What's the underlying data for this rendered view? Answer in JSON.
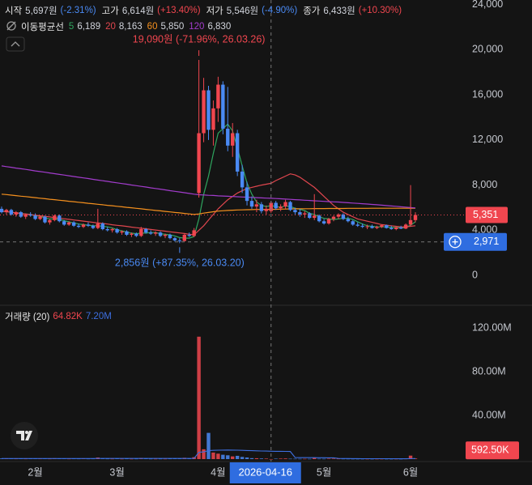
{
  "chart_data": [
    {
      "type": "candlestick",
      "x": [
        "2026-01-22",
        "2026-01-23",
        "2026-01-26",
        "2026-01-27",
        "2026-01-28",
        "2026-01-29",
        "2026-01-30",
        "2026-02-02",
        "2026-02-03",
        "2026-02-04",
        "2026-02-05",
        "2026-02-06",
        "2026-02-09",
        "2026-02-10",
        "2026-02-11",
        "2026-02-12",
        "2026-02-13",
        "2026-02-19",
        "2026-02-20",
        "2026-02-23",
        "2026-02-24",
        "2026-02-25",
        "2026-02-26",
        "2026-02-27",
        "2026-03-03",
        "2026-03-04",
        "2026-03-05",
        "2026-03-06",
        "2026-03-09",
        "2026-03-10",
        "2026-03-11",
        "2026-03-12",
        "2026-03-13",
        "2026-03-16",
        "2026-03-17",
        "2026-03-18",
        "2026-03-19",
        "2026-03-20",
        "2026-03-23",
        "2026-03-24",
        "2026-03-25",
        "2026-03-26",
        "2026-03-27",
        "2026-03-30",
        "2026-03-31",
        "2026-04-01",
        "2026-04-02",
        "2026-04-03",
        "2026-04-06",
        "2026-04-07",
        "2026-04-08",
        "2026-04-09",
        "2026-04-10",
        "2026-04-13",
        "2026-04-14",
        "2026-04-15",
        "2026-04-16",
        "2026-04-17",
        "2026-04-20",
        "2026-04-21",
        "2026-04-22",
        "2026-04-23",
        "2026-04-24",
        "2026-04-27",
        "2026-04-28",
        "2026-04-29",
        "2026-04-30",
        "2026-05-04",
        "2026-05-06",
        "2026-05-07",
        "2026-05-08",
        "2026-05-11",
        "2026-05-12",
        "2026-05-13",
        "2026-05-14",
        "2026-05-15",
        "2026-05-18",
        "2026-05-19",
        "2026-05-20",
        "2026-05-21",
        "2026-05-22",
        "2026-05-26",
        "2026-05-27",
        "2026-05-28",
        "2026-05-29",
        "2026-06-01",
        "2026-06-02"
      ],
      "open": [
        5900,
        5600,
        5800,
        5400,
        5600,
        5200,
        5400,
        5300,
        5000,
        5200,
        4700,
        4900,
        5300,
        4800,
        4500,
        4700,
        4400,
        4300,
        4500,
        4400,
        4200,
        4600,
        4100,
        4000,
        4100,
        3800,
        3900,
        3600,
        3700,
        3500,
        4100,
        3800,
        3700,
        3800,
        3500,
        3600,
        3300,
        3100,
        3050,
        3600,
        3500,
        7300,
        12600,
        16400,
        12900,
        14800,
        16900,
        13000,
        11500,
        12600,
        9200,
        7800,
        6600,
        6100,
        6300,
        5700,
        5697,
        6433,
        5950,
        6100,
        6500,
        5800,
        5600,
        5400,
        5500,
        5100,
        5300,
        4800,
        4600,
        5000,
        5200,
        5400,
        5000,
        4800,
        4500,
        4400,
        4300,
        4350,
        4200,
        4300,
        4450,
        4200,
        4100,
        4250,
        4150,
        4500,
        4900
      ],
      "high": [
        6100,
        5900,
        5900,
        5700,
        5700,
        5500,
        5600,
        5500,
        5300,
        5300,
        5000,
        5400,
        5400,
        4900,
        4800,
        4800,
        4600,
        4600,
        4700,
        4500,
        5900,
        4700,
        4300,
        4200,
        4200,
        4000,
        4000,
        3800,
        3800,
        4300,
        4200,
        4000,
        3900,
        3900,
        3700,
        3700,
        3400,
        3300,
        3700,
        3800,
        4200,
        19090,
        17500,
        16800,
        15500,
        17600,
        17200,
        16700,
        13500,
        12900,
        9800,
        8300,
        7000,
        6700,
        6500,
        6200,
        6614,
        6600,
        6300,
        6700,
        6600,
        6000,
        5900,
        5700,
        5600,
        7200,
        5400,
        5000,
        5100,
        5300,
        5500,
        5500,
        5200,
        4900,
        4700,
        4600,
        4500,
        4500,
        4400,
        4500,
        4500,
        4400,
        4300,
        4400,
        4600,
        8000,
        5600
      ],
      "low": [
        5500,
        5400,
        5300,
        5200,
        5100,
        5000,
        5200,
        4900,
        4900,
        4600,
        4500,
        4800,
        4700,
        4400,
        4400,
        4300,
        4200,
        4200,
        4300,
        4100,
        4100,
        4000,
        3900,
        3800,
        3700,
        3600,
        3500,
        3400,
        3400,
        3400,
        3700,
        3600,
        3500,
        3400,
        3300,
        3200,
        3000,
        2856,
        3000,
        3400,
        3400,
        6900,
        11800,
        12000,
        11500,
        13600,
        12500,
        11000,
        10500,
        8800,
        7300,
        6200,
        5900,
        5600,
        5500,
        5400,
        5546,
        5800,
        5700,
        5900,
        5700,
        5400,
        5200,
        5100,
        5000,
        4900,
        4700,
        4500,
        4500,
        4800,
        5000,
        4900,
        4700,
        4400,
        4300,
        4200,
        4100,
        4150,
        4100,
        4200,
        4150,
        4050,
        4000,
        4100,
        4100,
        4400,
        4700
      ],
      "close": [
        5600,
        5800,
        5400,
        5600,
        5200,
        5400,
        5300,
        5000,
        5200,
        4700,
        4900,
        5300,
        4800,
        4500,
        4700,
        4400,
        4300,
        4500,
        4400,
        4200,
        4600,
        4100,
        4000,
        4100,
        3800,
        3900,
        3600,
        3700,
        3500,
        4100,
        3800,
        3700,
        3800,
        3500,
        3600,
        3300,
        3100,
        3050,
        3600,
        3500,
        4000,
        12600,
        16400,
        12900,
        14800,
        16900,
        13000,
        11500,
        12600,
        9200,
        7800,
        6600,
        6100,
        6300,
        5700,
        5900,
        6433,
        5950,
        6100,
        6500,
        5800,
        5600,
        5400,
        5500,
        5100,
        5300,
        4800,
        4600,
        5000,
        5200,
        5400,
        5000,
        4800,
        4500,
        4400,
        4300,
        4350,
        4200,
        4300,
        4450,
        4200,
        4100,
        4250,
        4150,
        4500,
        4900,
        5351
      ],
      "up_color": "#f0464f",
      "down_color": "#4a8af4",
      "ylim": [
        -2500,
        24400
      ],
      "yticks": [
        0,
        {
          "value": 4000,
          "label": "4,000"
        },
        {
          "value": 8000,
          "label": "8,000"
        },
        {
          "value": 12000,
          "label": "12,000"
        },
        {
          "value": 16000,
          "label": "16,000"
        },
        {
          "value": 20000,
          "label": "20,000"
        },
        {
          "value": 24000,
          "label": "24,000"
        }
      ],
      "xticks": [
        {
          "value": "2026-02-02",
          "label": "2월"
        },
        {
          "value": "2026-03-03",
          "label": "3월"
        },
        {
          "value": "2026-04-01",
          "label": "4월"
        },
        {
          "value": "2026-05-04",
          "label": "5월"
        },
        {
          "value": "2026-06-01",
          "label": "6월"
        }
      ],
      "grid": false,
      "ohlc_legend": [
        {
          "label": "시작",
          "value": "5,697원",
          "change": "(-2.31%)"
        },
        {
          "label": "고가",
          "value": "6,614원",
          "change": "(+13.40%)"
        },
        {
          "label": "저가",
          "value": "5,546원",
          "change": "(-4.90%)"
        },
        {
          "label": "종가",
          "value": "6,433원",
          "change": "(+10.30%)"
        }
      ],
      "ma_title": "이동평균선",
      "series": [
        {
          "name": "5",
          "color": "#2fa65f",
          "legend_value": "6,189",
          "values": [
            5700,
            5650,
            5600,
            5550,
            5500,
            5450,
            5400,
            5300,
            5250,
            5100,
            5000,
            5000,
            4950,
            4850,
            4750,
            4650,
            4550,
            4500,
            4450,
            4400,
            4400,
            4350,
            4300,
            4200,
            4050,
            3950,
            3850,
            3750,
            3700,
            3750,
            3750,
            3800,
            3800,
            3700,
            3650,
            3600,
            3500,
            3350,
            3300,
            3300,
            3450,
            5000,
            7200,
            8800,
            10800,
            12600,
            13000,
            13400,
            12800,
            11300,
            9700,
            8200,
            7200,
            6500,
            6200,
            6100,
            6189,
            6100,
            6050,
            6150,
            6100,
            5950,
            5850,
            5750,
            5500,
            5400,
            5200,
            5050,
            5000,
            4950,
            5000,
            5050,
            5050,
            4950,
            4750,
            4550,
            4400,
            4350,
            4300,
            4300,
            4300,
            4250,
            4250,
            4200,
            4250,
            4450,
            4750
          ]
        },
        {
          "name": "20",
          "color": "#e0464e",
          "legend_value": "8,163",
          "values": [
            5700,
            5650,
            5600,
            5540,
            5490,
            5440,
            5390,
            5330,
            5280,
            5230,
            5180,
            5120,
            5070,
            5020,
            4970,
            4910,
            4860,
            4810,
            4760,
            4700,
            4650,
            4600,
            4550,
            4490,
            4440,
            4390,
            4340,
            4280,
            4230,
            4180,
            4130,
            4070,
            4020,
            3970,
            3920,
            3860,
            3810,
            3760,
            3710,
            3650,
            3600,
            4000,
            4400,
            4900,
            5400,
            5900,
            6300,
            6700,
            7000,
            7300,
            7500,
            7700,
            7800,
            7900,
            8000,
            8080,
            8163,
            8400,
            8600,
            8800,
            9000,
            8900,
            8700,
            8400,
            8100,
            7800,
            7400,
            7000,
            6600,
            6200,
            5900,
            5600,
            5400,
            5200,
            5000,
            4900,
            4800,
            4700,
            4600,
            4500,
            4450,
            4400,
            4350,
            4300,
            4300,
            4350,
            4400
          ]
        },
        {
          "name": "60",
          "color": "#f5901e",
          "legend_value": "5,850",
          "values": [
            7200,
            7160,
            7110,
            7070,
            7020,
            6980,
            6930,
            6890,
            6840,
            6800,
            6750,
            6710,
            6660,
            6620,
            6570,
            6530,
            6480,
            6440,
            6390,
            6350,
            6300,
            6260,
            6210,
            6170,
            6120,
            6080,
            6030,
            5990,
            5940,
            5900,
            5850,
            5810,
            5760,
            5720,
            5670,
            5630,
            5580,
            5540,
            5490,
            5450,
            5400,
            5450,
            5520,
            5580,
            5640,
            5700,
            5730,
            5760,
            5780,
            5800,
            5810,
            5820,
            5830,
            5840,
            5840,
            5850,
            5850,
            5860,
            5870,
            5880,
            5890,
            5900,
            5900,
            5910,
            5910,
            5920,
            5920,
            5920,
            5930,
            5930,
            5930,
            5930,
            5940,
            5940,
            5940,
            5940,
            5940,
            5950,
            5950,
            5950,
            5950,
            5950,
            5950,
            5950,
            5950,
            5950,
            5960
          ]
        },
        {
          "name": "120",
          "color": "#a23ccc",
          "legend_value": "6,830",
          "values": [
            9700,
            9640,
            9580,
            9510,
            9450,
            9390,
            9330,
            9260,
            9200,
            9140,
            9080,
            9010,
            8950,
            8890,
            8830,
            8760,
            8700,
            8640,
            8580,
            8510,
            8450,
            8390,
            8330,
            8260,
            8200,
            8140,
            8080,
            8010,
            7950,
            7890,
            7830,
            7760,
            7700,
            7640,
            7580,
            7510,
            7450,
            7390,
            7330,
            7260,
            7200,
            7150,
            7130,
            7100,
            7080,
            7050,
            7030,
            7010,
            6990,
            6970,
            6950,
            6930,
            6910,
            6890,
            6870,
            6850,
            6830,
            6810,
            6790,
            6760,
            6740,
            6710,
            6690,
            6660,
            6640,
            6610,
            6590,
            6560,
            6540,
            6520,
            6500,
            6470,
            6440,
            6410,
            6380,
            6350,
            6320,
            6290,
            6260,
            6220,
            6190,
            6150,
            6120,
            6080,
            6050,
            6010,
            5980
          ]
        }
      ],
      "annotations": [
        {
          "text": "19,090원 (-71.96%, 26.03.26)",
          "x": "2026-03-26",
          "y": 19090
        },
        {
          "text": "2,856원 (+87.35%, 26.03.20)",
          "x": "2026-03-20",
          "y": 2856
        }
      ],
      "last_price": {
        "value": 5351,
        "label": "5,351"
      },
      "crosshair": {
        "x": "2026-04-16",
        "y": {
          "value": 2971,
          "label": "2,971"
        }
      }
    },
    {
      "type": "bar",
      "title": "거래량 (20)",
      "legend_value": "64.82K",
      "values": [
        620000,
        480000,
        550000,
        410000,
        530000,
        390000,
        450000,
        600000,
        420000,
        710000,
        380000,
        820000,
        560000,
        470000,
        350000,
        430000,
        390000,
        450000,
        360000,
        410000,
        1450000,
        520000,
        380000,
        330000,
        440000,
        300000,
        410000,
        280000,
        350000,
        980000,
        470000,
        330000,
        290000,
        360000,
        310000,
        420000,
        560000,
        690000,
        1200000,
        640000,
        1800000,
        112000000,
        9000000,
        24000000,
        6000000,
        5000000,
        4000000,
        3500000,
        2500000,
        3000000,
        2000000,
        1500000,
        900000,
        800000,
        600000,
        500000,
        64820,
        450000,
        520000,
        610000,
        380000,
        340000,
        300000,
        290000,
        270000,
        1300000,
        350000,
        310000,
        420000,
        480000,
        390000,
        330000,
        290000,
        260000,
        240000,
        250000,
        230000,
        220000,
        240000,
        260000,
        230000,
        210000,
        250000,
        230000,
        380000,
        3200000,
        592500
      ],
      "last_label": "592.50K",
      "ma": {
        "color": "#3d6fe0",
        "legend_value": "7.20M",
        "values": [
          560000,
          555000,
          552000,
          548000,
          545000,
          540000,
          538000,
          535000,
          533000,
          530000,
          528000,
          527000,
          525000,
          524000,
          522000,
          520000,
          518000,
          560000,
          558000,
          555000,
          600000,
          598000,
          596000,
          594000,
          592000,
          590000,
          588000,
          585000,
          583000,
          600000,
          598000,
          596000,
          594000,
          592000,
          590000,
          588000,
          590000,
          595000,
          625000,
          630000,
          690000,
          6250000,
          6650000,
          7800000,
          8000000,
          8150000,
          8250000,
          8300000,
          8250000,
          8150000,
          8000000,
          7850000,
          7700000,
          7550000,
          7450000,
          7350000,
          7200000,
          7150000,
          7100000,
          7050000,
          7000000,
          1450000,
          1380000,
          1350000,
          1320000,
          1340000,
          1300000,
          1250000,
          1220000,
          1180000,
          600000,
          560000,
          520000,
          480000,
          450000,
          420000,
          410000,
          400000,
          390000,
          380000,
          370000,
          360000,
          350000,
          340000,
          350000,
          500000,
          510000
        ]
      },
      "ylim": [
        -2200000,
        140000000
      ],
      "yticks": [
        {
          "value": 40000000,
          "label": "40.00M"
        },
        {
          "value": 80000000,
          "label": "80.00M"
        },
        {
          "value": 120000000,
          "label": "120.00M"
        }
      ]
    }
  ]
}
